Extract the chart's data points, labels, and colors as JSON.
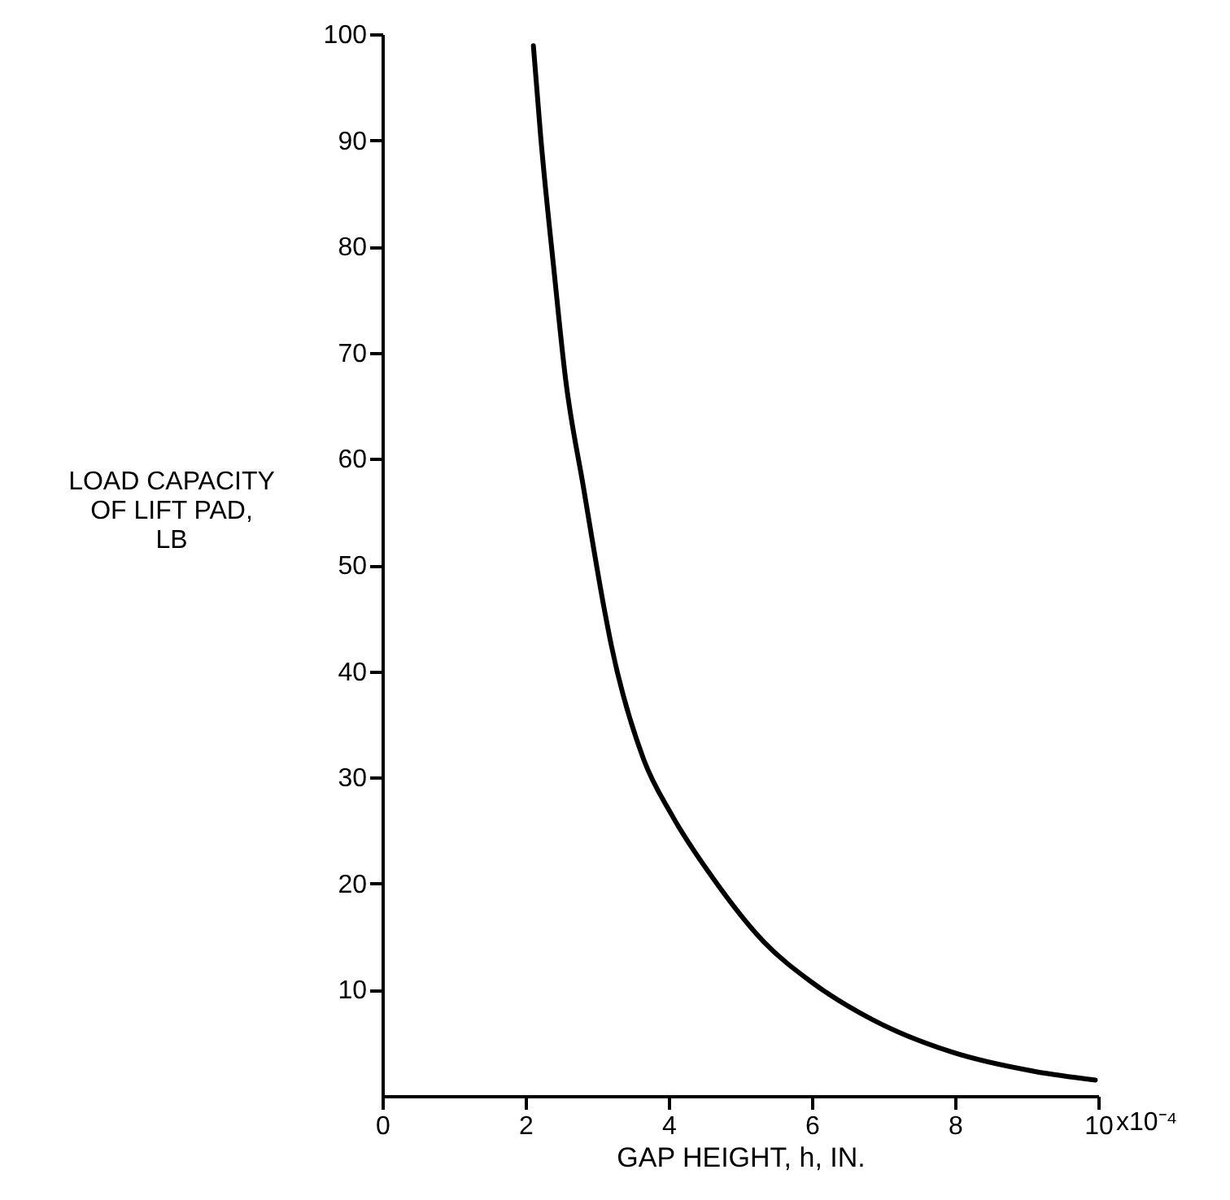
{
  "chart_data": {
    "type": "line",
    "xlabel": "GAP HEIGHT, h, IN.",
    "ylabel": "LOAD CAPACITY\nOF LIFT PAD,\nLB",
    "x": [
      2.11,
      2.21,
      2.4,
      2.56,
      2.81,
      3.11,
      3.2,
      3.65,
      4.04,
      4.63,
      5.33,
      6.0,
      6.84,
      7.97,
      9.12,
      9.96
    ],
    "series": [
      {
        "color": "#000000",
        "values": [
          98.9,
          90.5,
          77.6,
          67.5,
          57.3,
          45.5,
          42.4,
          31.7,
          26.5,
          20.4,
          14.5,
          10.7,
          7.2,
          4.1,
          2.3,
          1.5
        ]
      }
    ],
    "xlim": [
      0,
      10
    ],
    "ylim": [
      0,
      100
    ],
    "xticks": [
      0,
      2,
      4,
      6,
      8,
      10
    ],
    "annotations": [
      "x10⁻⁴"
    ],
    "yticks": [
      10,
      20,
      30,
      40,
      50,
      60,
      70,
      80,
      90,
      100
    ],
    "grid": false,
    "marker": "none",
    "line_style": "solid"
  }
}
